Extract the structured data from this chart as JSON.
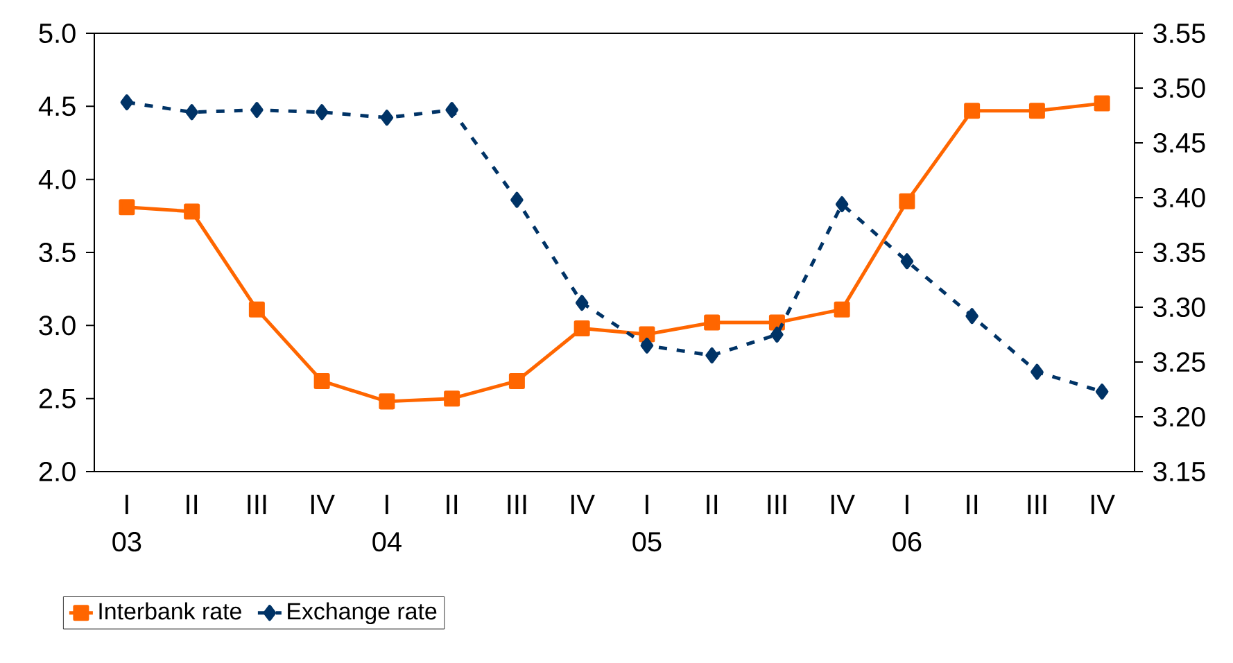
{
  "chart_data": {
    "type": "line",
    "categories": [
      "I 03",
      "II",
      "III",
      "IV",
      "I 04",
      "II",
      "III",
      "IV",
      "I 05",
      "II",
      "III",
      "IV",
      "I 06",
      "II",
      "III",
      "IV"
    ],
    "series": [
      {
        "name": "Interbank rate",
        "color": "#ff6600",
        "marker": "square",
        "line_style": "solid",
        "values": [
          3.81,
          3.78,
          3.11,
          2.62,
          2.48,
          2.5,
          2.62,
          2.98,
          2.94,
          3.02,
          3.02,
          3.11,
          3.85,
          4.47,
          4.47,
          4.52
        ]
      },
      {
        "name": "Exchange rate",
        "color": "#003366",
        "marker": "diamond",
        "line_style": "dashed",
        "axis": "y2",
        "values": [
          3.487,
          3.478,
          3.48,
          3.478,
          3.473,
          3.48,
          3.398,
          3.304,
          3.265,
          3.256,
          3.275,
          3.394,
          3.342,
          3.292,
          3.241,
          3.223
        ]
      }
    ],
    "ylim": [
      2,
      5
    ],
    "yticks": [
      {
        "value": 2,
        "label": "2.0"
      },
      2.5,
      {
        "value": 3,
        "label": "3.0"
      },
      3.5,
      {
        "value": 4,
        "label": "4.0"
      },
      4.5,
      {
        "value": 5,
        "label": "5.0"
      }
    ],
    "y2lim": [
      3.15,
      3.55
    ],
    "y2ticks": [
      3.15,
      {
        "value": 3.2,
        "label": "3.20"
      },
      3.25,
      {
        "value": 3.3,
        "label": "3.30"
      },
      3.35,
      {
        "value": 3.4,
        "label": "3.40"
      },
      3.45,
      {
        "value": 3.5,
        "label": "3.50"
      },
      3.55
    ],
    "legend": "bottom",
    "grid": false
  }
}
